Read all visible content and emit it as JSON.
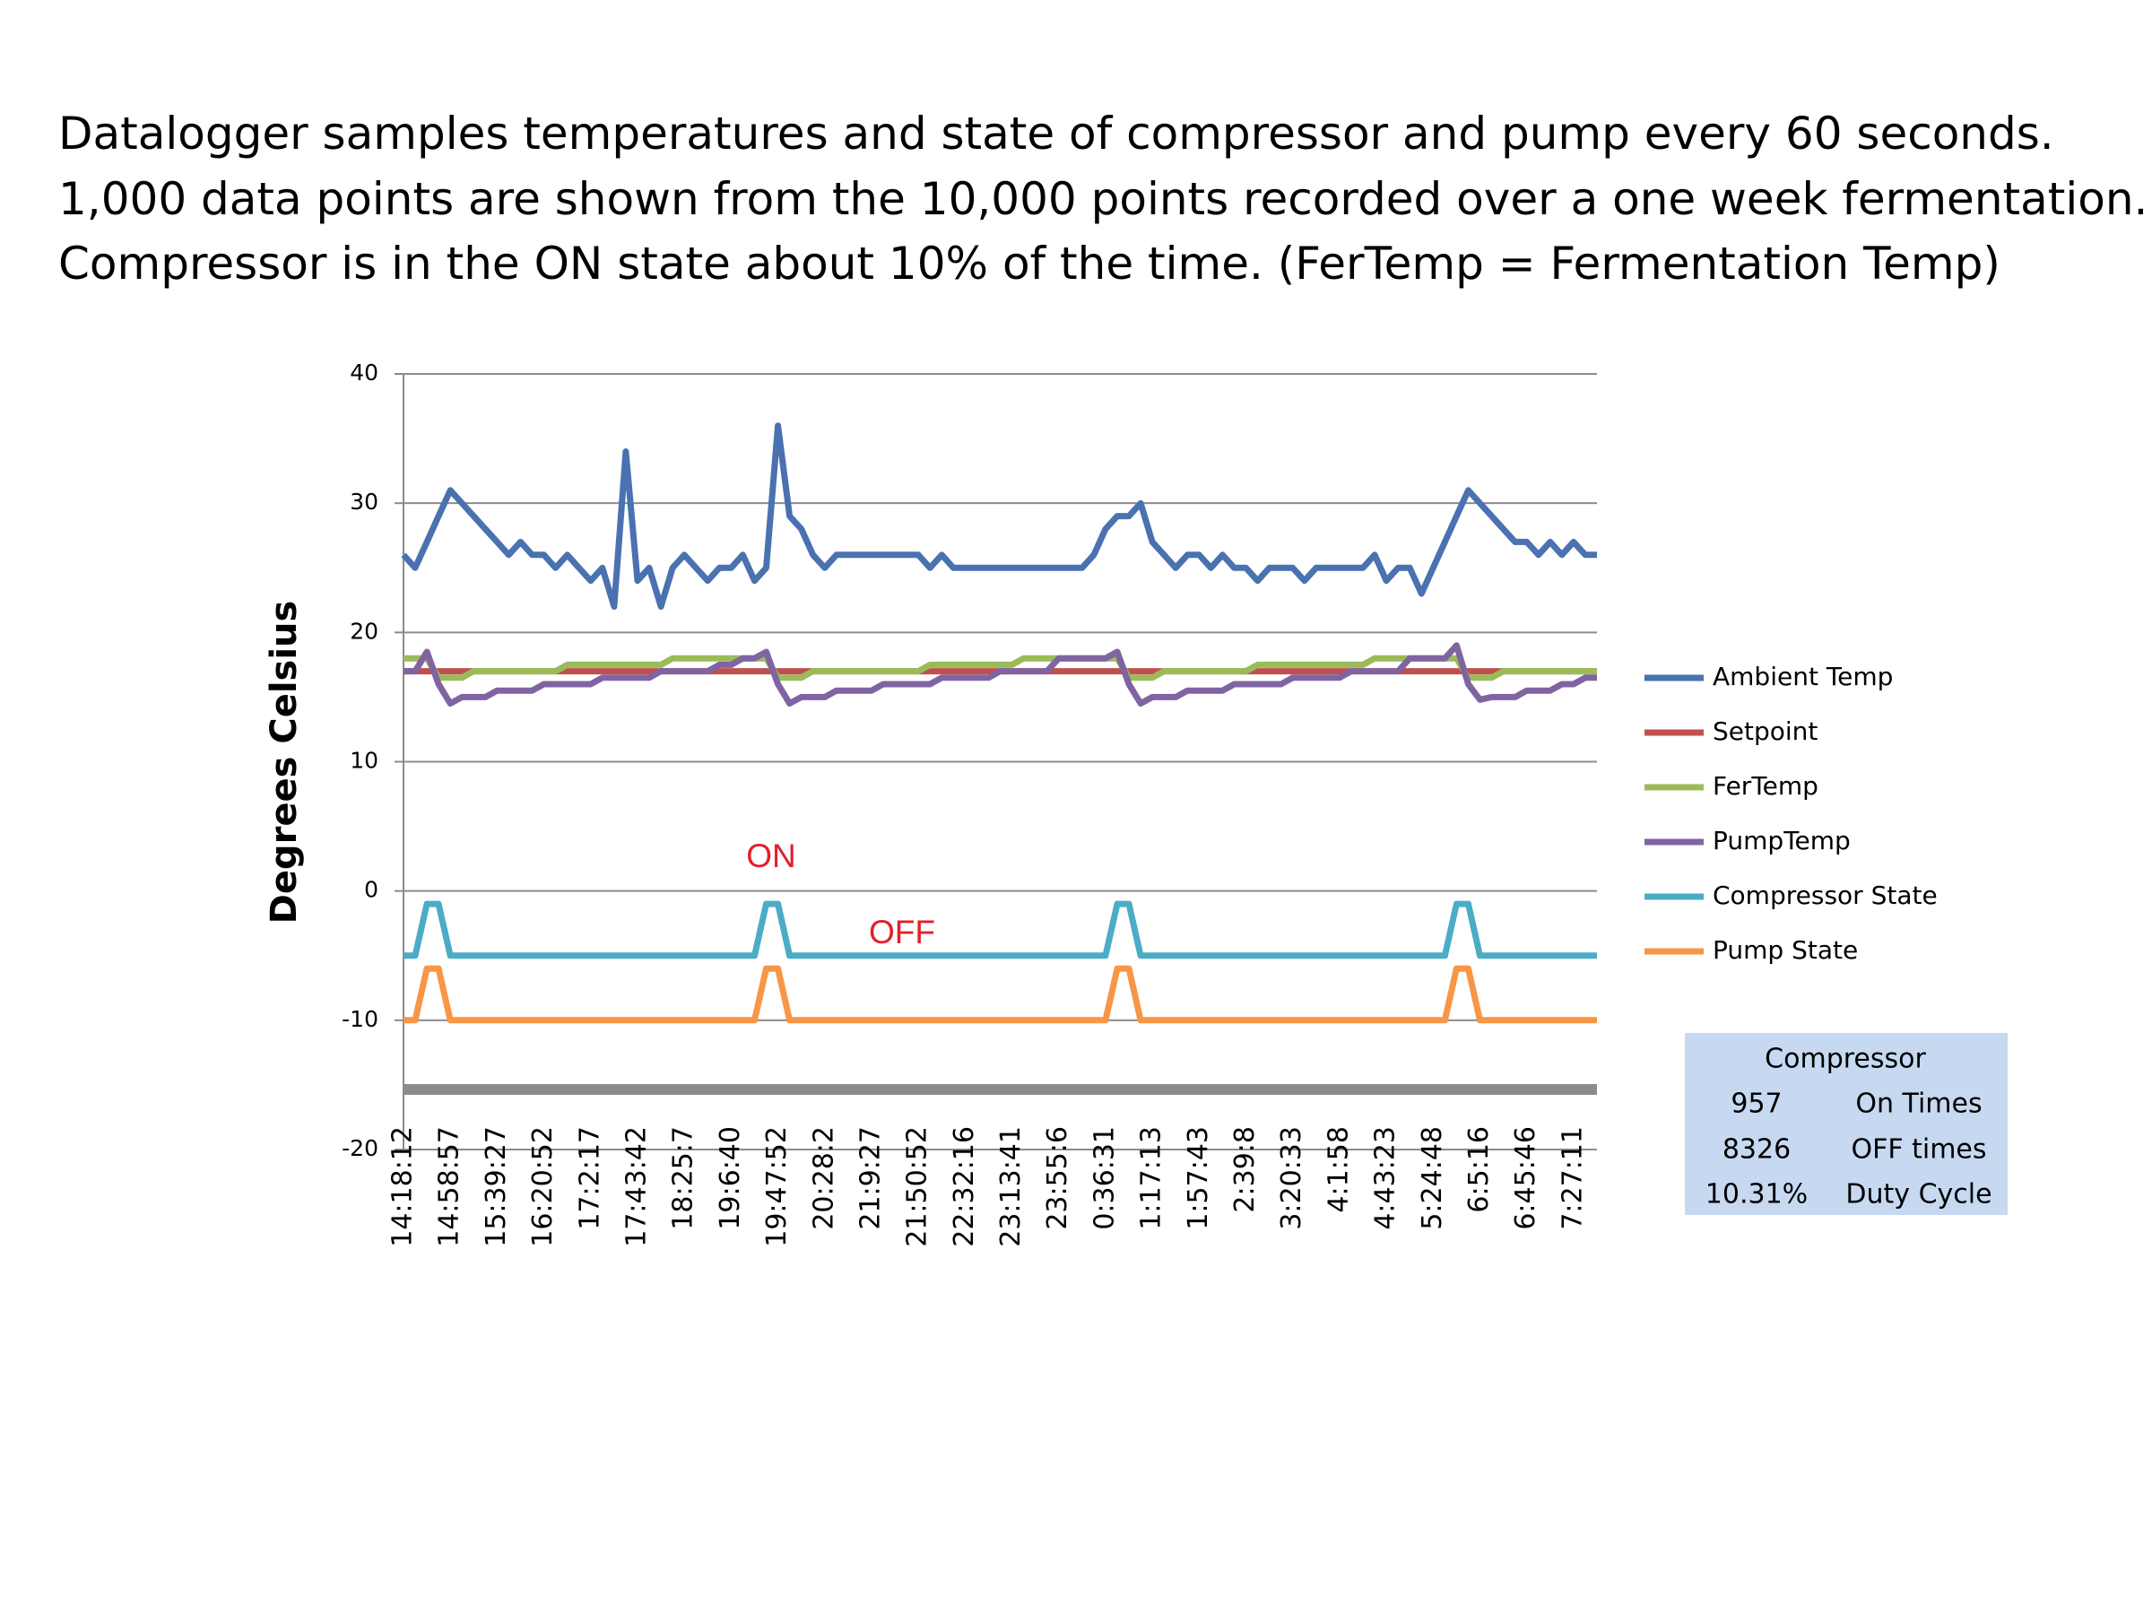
{
  "chart_data": {
    "type": "line",
    "title_lines": [
      "Datalogger samples temperatures and state of compressor and pump every 60 seconds.",
      "1,000 data points are shown from the 10,000 points recorded over a one week fermentation.",
      "Compressor is in the ON state about 10% of the time. (FerTemp = Fermentation Temp)"
    ],
    "ylabel": "Degrees Celsius",
    "annotations": [
      "ON",
      "OFF"
    ],
    "ylim": [
      -20,
      40
    ],
    "yticks": [
      -20,
      -10,
      0,
      10,
      20,
      30,
      40
    ],
    "grid": true,
    "legend": "right",
    "categories": [
      "14:18:12",
      null,
      null,
      null,
      "14:58:57",
      null,
      null,
      null,
      "15:39:27",
      null,
      null,
      null,
      "16:20:52",
      null,
      null,
      null,
      "17:2:17",
      null,
      null,
      null,
      "17:43:42",
      null,
      null,
      null,
      "18:25:7",
      null,
      null,
      null,
      "19:6:40",
      null,
      null,
      null,
      "19:47:52",
      null,
      null,
      null,
      "20:28:2",
      null,
      null,
      null,
      "21:9:27",
      null,
      null,
      null,
      "21:50:52",
      null,
      null,
      null,
      "22:32:16",
      null,
      null,
      null,
      "23:13:41",
      null,
      null,
      null,
      "23:55:6",
      null,
      null,
      null,
      "0:36:31",
      null,
      null,
      null,
      "1:17:13",
      null,
      null,
      null,
      "1:57:43",
      null,
      null,
      null,
      "2:39:8",
      null,
      null,
      null,
      "3:20:33",
      null,
      null,
      null,
      "4:1:58",
      null,
      null,
      null,
      "4:43:23",
      null,
      null,
      null,
      "5:24:48",
      null,
      null,
      null,
      "6:5:16",
      null,
      null,
      null,
      "6:45:46",
      null,
      null,
      null,
      "7:27:11",
      null,
      null
    ],
    "series": [
      {
        "name": "Ambient Temp",
        "color": "#4a72b0",
        "values": [
          26,
          25,
          27,
          29,
          31,
          30,
          29,
          28,
          27,
          26,
          27,
          26,
          26,
          25,
          26,
          25,
          24,
          25,
          22,
          34,
          24,
          25,
          22,
          25,
          26,
          25,
          24,
          25,
          25,
          26,
          24,
          25,
          36,
          29,
          28,
          26,
          25,
          26,
          26,
          26,
          26,
          26,
          26,
          26,
          26,
          25,
          26,
          25,
          25,
          25,
          25,
          25,
          25,
          25,
          25,
          25,
          25,
          25,
          25,
          26,
          28,
          29,
          29,
          30,
          27,
          26,
          25,
          26,
          26,
          25,
          26,
          25,
          25,
          24,
          25,
          25,
          25,
          24,
          25,
          25,
          25,
          25,
          25,
          26,
          24,
          25,
          25,
          23,
          25,
          27,
          29,
          31,
          30,
          29,
          28,
          27,
          27,
          26,
          27,
          26,
          27,
          26,
          26
        ]
      },
      {
        "name": "Setpoint",
        "color": "#c0504d",
        "values": [
          17,
          17,
          17,
          17,
          17,
          17,
          17,
          17,
          17,
          17,
          17,
          17,
          17,
          17,
          17,
          17,
          17,
          17,
          17,
          17,
          17,
          17,
          17,
          17,
          17,
          17,
          17,
          17,
          17,
          17,
          17,
          17,
          17,
          17,
          17,
          17,
          17,
          17,
          17,
          17,
          17,
          17,
          17,
          17,
          17,
          17,
          17,
          17,
          17,
          17,
          17,
          17,
          17,
          17,
          17,
          17,
          17,
          17,
          17,
          17,
          17,
          17,
          17,
          17,
          17,
          17,
          17,
          17,
          17,
          17,
          17,
          17,
          17,
          17,
          17,
          17,
          17,
          17,
          17,
          17,
          17,
          17,
          17,
          17,
          17,
          17,
          17,
          17,
          17,
          17,
          17,
          17,
          17,
          17,
          17,
          17,
          17,
          17,
          17,
          17,
          17,
          17,
          17
        ]
      },
      {
        "name": "FerTemp",
        "color": "#9bbb59",
        "values": [
          18,
          18,
          18,
          16.5,
          16.5,
          16.5,
          17,
          17,
          17,
          17,
          17,
          17,
          17,
          17,
          17.5,
          17.5,
          17.5,
          17.5,
          17.5,
          17.5,
          17.5,
          17.5,
          17.5,
          18,
          18,
          18,
          18,
          18,
          18,
          18,
          18,
          18,
          16.5,
          16.5,
          16.5,
          17,
          17,
          17,
          17,
          17,
          17,
          17,
          17,
          17,
          17,
          17.5,
          17.5,
          17.5,
          17.5,
          17.5,
          17.5,
          17.5,
          17.5,
          18,
          18,
          18,
          18,
          18,
          18,
          18,
          18,
          18,
          16.5,
          16.5,
          16.5,
          17,
          17,
          17,
          17,
          17,
          17,
          17,
          17,
          17.5,
          17.5,
          17.5,
          17.5,
          17.5,
          17.5,
          17.5,
          17.5,
          17.5,
          17.5,
          18,
          18,
          18,
          18,
          18,
          18,
          18,
          18,
          16.5,
          16.5,
          16.5,
          17,
          17,
          17,
          17,
          17,
          17,
          17,
          17,
          17
        ]
      },
      {
        "name": "PumpTemp",
        "color": "#8064a2",
        "values": [
          17,
          17,
          18.5,
          16,
          14.5,
          15,
          15,
          15,
          15.5,
          15.5,
          15.5,
          15.5,
          16,
          16,
          16,
          16,
          16,
          16.5,
          16.5,
          16.5,
          16.5,
          16.5,
          17,
          17,
          17,
          17,
          17,
          17.5,
          17.5,
          18,
          18,
          18.5,
          16,
          14.5,
          15,
          15,
          15,
          15.5,
          15.5,
          15.5,
          15.5,
          16,
          16,
          16,
          16,
          16,
          16.5,
          16.5,
          16.5,
          16.5,
          16.5,
          17,
          17,
          17,
          17,
          17,
          18,
          18,
          18,
          18,
          18,
          18.5,
          16,
          14.5,
          15,
          15,
          15,
          15.5,
          15.5,
          15.5,
          15.5,
          16,
          16,
          16,
          16,
          16,
          16.5,
          16.5,
          16.5,
          16.5,
          16.5,
          17,
          17,
          17,
          17,
          17,
          18,
          18,
          18,
          18,
          19,
          16,
          14.8,
          15,
          15,
          15,
          15.5,
          15.5,
          15.5,
          16,
          16,
          16.5,
          16.5
        ]
      },
      {
        "name": "Compressor State",
        "color": "#4bacc6",
        "values": [
          -5,
          -5,
          -1,
          -1,
          -5,
          -5,
          -5,
          -5,
          -5,
          -5,
          -5,
          -5,
          -5,
          -5,
          -5,
          -5,
          -5,
          -5,
          -5,
          -5,
          -5,
          -5,
          -5,
          -5,
          -5,
          -5,
          -5,
          -5,
          -5,
          -5,
          -5,
          -1,
          -1,
          -5,
          -5,
          -5,
          -5,
          -5,
          -5,
          -5,
          -5,
          -5,
          -5,
          -5,
          -5,
          -5,
          -5,
          -5,
          -5,
          -5,
          -5,
          -5,
          -5,
          -5,
          -5,
          -5,
          -5,
          -5,
          -5,
          -5,
          -5,
          -1,
          -1,
          -5,
          -5,
          -5,
          -5,
          -5,
          -5,
          -5,
          -5,
          -5,
          -5,
          -5,
          -5,
          -5,
          -5,
          -5,
          -5,
          -5,
          -5,
          -5,
          -5,
          -5,
          -5,
          -5,
          -5,
          -5,
          -5,
          -5,
          -1,
          -1,
          -5,
          -5,
          -5,
          -5,
          -5,
          -5,
          -5,
          -5,
          -5,
          -5,
          -5
        ]
      },
      {
        "name": "Pump State",
        "color": "#f79646",
        "values": [
          -10,
          -10,
          -6,
          -6,
          -10,
          -10,
          -10,
          -10,
          -10,
          -10,
          -10,
          -10,
          -10,
          -10,
          -10,
          -10,
          -10,
          -10,
          -10,
          -10,
          -10,
          -10,
          -10,
          -10,
          -10,
          -10,
          -10,
          -10,
          -10,
          -10,
          -10,
          -6,
          -6,
          -10,
          -10,
          -10,
          -10,
          -10,
          -10,
          -10,
          -10,
          -10,
          -10,
          -10,
          -10,
          -10,
          -10,
          -10,
          -10,
          -10,
          -10,
          -10,
          -10,
          -10,
          -10,
          -10,
          -10,
          -10,
          -10,
          -10,
          -10,
          -6,
          -6,
          -10,
          -10,
          -10,
          -10,
          -10,
          -10,
          -10,
          -10,
          -10,
          -10,
          -10,
          -10,
          -10,
          -10,
          -10,
          -10,
          -10,
          -10,
          -10,
          -10,
          -10,
          -10,
          -10,
          -10,
          -10,
          -10,
          -10,
          -6,
          -6,
          -10,
          -10,
          -10,
          -10,
          -10,
          -10,
          -10,
          -10,
          -10,
          -10,
          -10
        ]
      }
    ],
    "summary_table": {
      "title": "Compressor",
      "rows": [
        [
          "957",
          "On Times"
        ],
        [
          "8326",
          "OFF times"
        ],
        [
          "10.31%",
          "Duty Cycle"
        ]
      ]
    }
  }
}
